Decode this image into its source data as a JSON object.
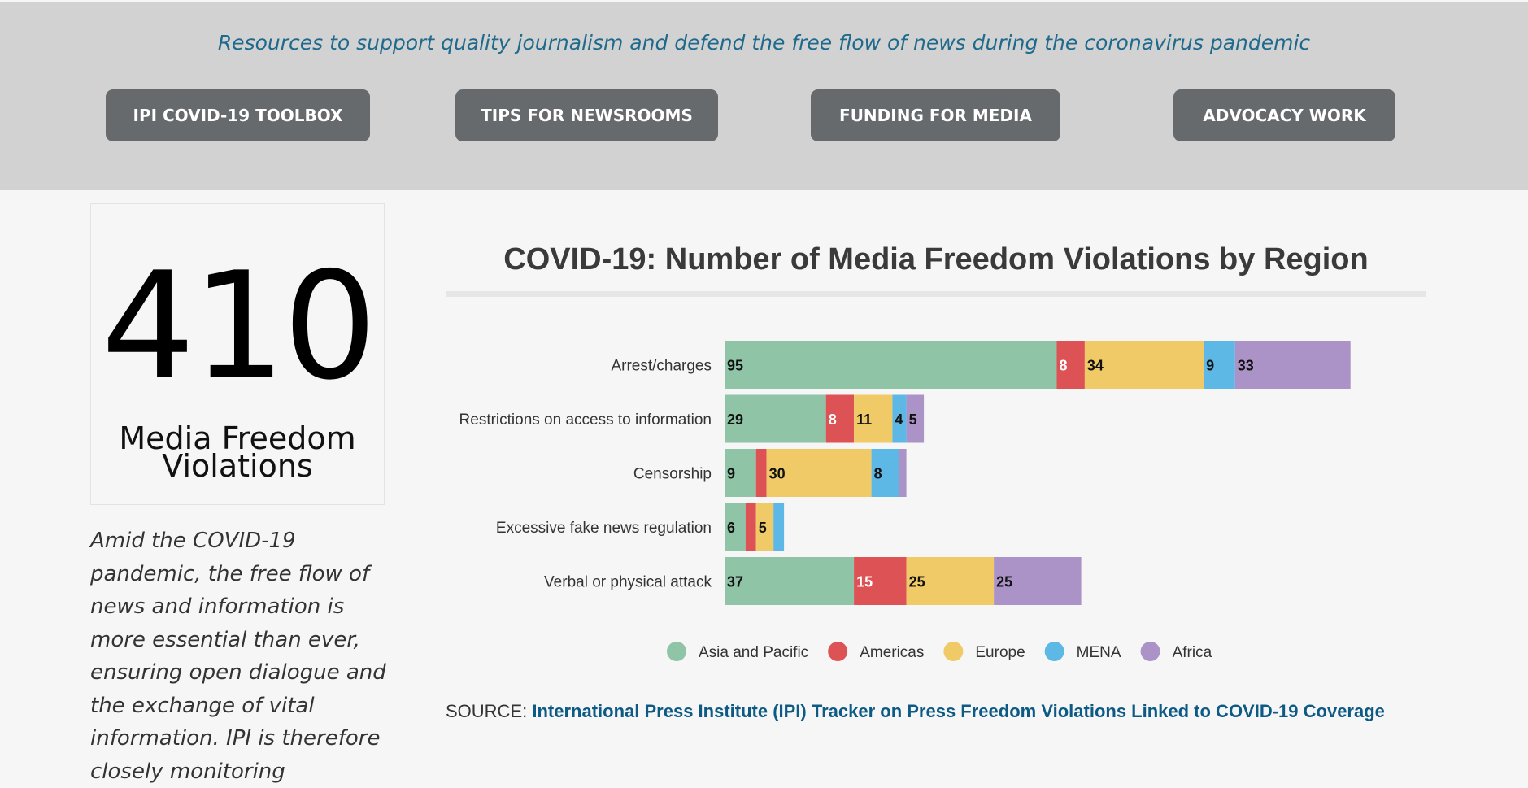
{
  "header": {
    "tagline": "Resources to support quality journalism and defend the free flow of news during the coronavirus pandemic",
    "buttons": [
      {
        "label": "IPI COVID-19 TOOLBOX"
      },
      {
        "label": "TIPS FOR NEWSROOMS"
      },
      {
        "label": "FUNDING FOR MEDIA"
      },
      {
        "label": "ADVOCACY WORK"
      }
    ]
  },
  "stat": {
    "number": "410",
    "label_line1": "Media Freedom",
    "label_line2": "Violations"
  },
  "intro": {
    "text": "Amid the COVID-19 pandemic, the free flow of news and information is more essential than ever, ensuring open dialogue and the exchange of vital information. IPI is therefore closely monitoring"
  },
  "chart_data": {
    "type": "bar",
    "orientation": "horizontal",
    "stacked": true,
    "title": "COVID-19: Number of Media Freedom Violations by Region",
    "categories": [
      "Arrest/charges",
      "Restrictions on access to information",
      "Censorship",
      "Excessive fake news regulation",
      "Verbal or physical attack"
    ],
    "series": [
      {
        "name": "Asia and Pacific",
        "color": "#8fc4a7",
        "values": [
          95,
          29,
          9,
          6,
          37
        ]
      },
      {
        "name": "Americas",
        "color": "#dd5254",
        "values": [
          8,
          8,
          3,
          3,
          15
        ]
      },
      {
        "name": "Europe",
        "color": "#efca67",
        "values": [
          34,
          11,
          30,
          5,
          25
        ]
      },
      {
        "name": "MENA",
        "color": "#5db8e6",
        "values": [
          9,
          4,
          8,
          3,
          0
        ]
      },
      {
        "name": "Africa",
        "color": "#ab93c8",
        "values": [
          33,
          5,
          2,
          0,
          25
        ]
      }
    ],
    "data_labels_shown": [
      [
        true,
        true,
        true,
        true,
        true
      ],
      [
        true,
        true,
        true,
        true,
        true
      ],
      [
        true,
        false,
        true,
        true,
        false
      ],
      [
        true,
        false,
        true,
        false,
        false
      ],
      [
        true,
        true,
        true,
        false,
        true
      ]
    ],
    "label_text_colors": [
      "#111111",
      "#ffffff",
      "#111111",
      "#111111",
      "#111111"
    ],
    "legend_position": "bottom",
    "grid": false
  },
  "source": {
    "prefix": "SOURCE: ",
    "link_text": "International Press Institute (IPI) Tracker on Press Freedom Violations Linked to COVID-19 Coverage"
  }
}
